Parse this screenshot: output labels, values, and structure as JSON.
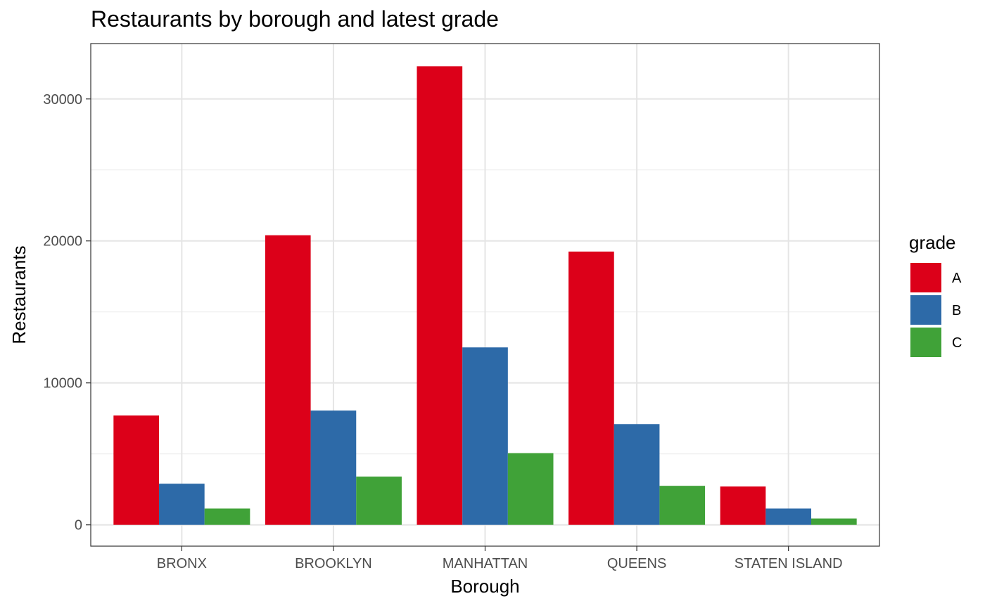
{
  "chart_data": {
    "type": "bar",
    "title": "Restaurants by borough and latest grade",
    "xlabel": "Borough",
    "ylabel": "Restaurants",
    "categories": [
      "BRONX",
      "BROOKLYN",
      "MANHATTAN",
      "QUEENS",
      "STATEN ISLAND"
    ],
    "series": [
      {
        "name": "A",
        "color": "#DC0019",
        "values": [
          7700,
          20400,
          32300,
          19250,
          2700
        ]
      },
      {
        "name": "B",
        "color": "#2D6AA8",
        "values": [
          2900,
          8050,
          12500,
          7100,
          1150
        ]
      },
      {
        "name": "C",
        "color": "#40A238",
        "values": [
          1150,
          3400,
          5050,
          2750,
          450
        ]
      }
    ],
    "ylim": [
      -1500,
      33900
    ],
    "y_ticks": [
      0,
      10000,
      20000,
      30000
    ],
    "y_tick_labels": [
      "0",
      "10000",
      "20000",
      "30000"
    ],
    "grid": true,
    "legend": {
      "title": "grade",
      "position": "right"
    }
  }
}
